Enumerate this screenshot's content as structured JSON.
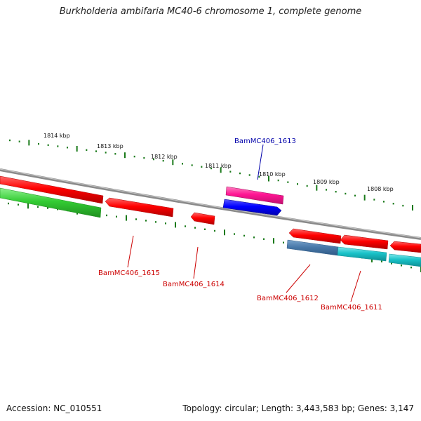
{
  "title": "Burkholderia ambifaria MC40-6 chromosome 1, complete genome",
  "accession": "Accession: NC_010551",
  "summary": "Topology: circular; Length: 3,443,583 bp; Genes: 3,147",
  "colors": {
    "backbone": "#8a8a8a",
    "tick": "#1a7a1a",
    "label_red": "#cc0000",
    "label_blue": "#0000aa",
    "gene_red": "#ff0000",
    "gene_green": "#33cc33",
    "gene_magenta": "#ff1493",
    "gene_blue": "#0000ff",
    "gene_steelblue": "#4a7aaa",
    "gene_cyan": "#19c2c8"
  },
  "scale_labels": [
    "1814 kbp",
    "1813 kbp",
    "1812 kbp",
    "1811 kbp",
    "1810 kbp",
    "1809 kbp",
    "1808 kbp"
  ],
  "gene_labels": [
    {
      "text": "BamMC406_1613",
      "color": "blue"
    },
    {
      "text": "BamMC406_1615",
      "color": "red"
    },
    {
      "text": "BamMC406_1614",
      "color": "red"
    },
    {
      "text": "BamMC406_1612",
      "color": "red"
    },
    {
      "text": "BamMC406_1611",
      "color": "red"
    }
  ]
}
